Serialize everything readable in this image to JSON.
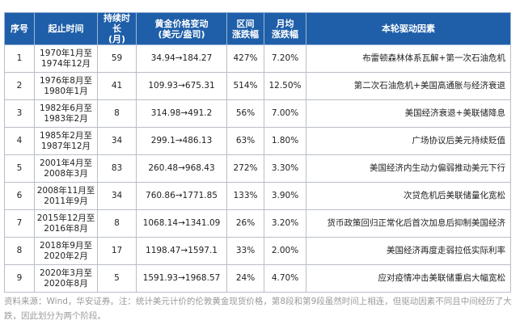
{
  "table": {
    "header": [
      "序号",
      "起止时间",
      "持续时长\n(月)",
      "黄金价格变动\n(美元/盎司)",
      "区间\n涨跌幅",
      "月均\n涨跌幅",
      "本轮驱动因素"
    ],
    "rows": [
      [
        "1",
        "1970年1月至\n1974年12月",
        "59",
        "34.94→184.27",
        "427%",
        "7.20%",
        "布雷顿森林体系瓦解+第一次石油危机"
      ],
      [
        "2",
        "1976年8月至\n1980年1月",
        "41",
        "109.93→675.31",
        "514%",
        "12.50%",
        "第二次石油危机+美国高通胀与经济衰退"
      ],
      [
        "3",
        "1982年6月至\n1983年2月",
        "8",
        "314.98→491.2",
        "56%",
        "7.00%",
        "美国经济衰退+美联储降息"
      ],
      [
        "4",
        "1985年2月至\n1987年12月",
        "34",
        "299.1→486.13",
        "63%",
        "1.80%",
        "广场协议后美元持续贬值"
      ],
      [
        "5",
        "2001年4月至\n2008年3月",
        "83",
        "260.48→968.43",
        "272%",
        "3.30%",
        "美国经济内生动力偏弱推动美元下行"
      ],
      [
        "6",
        "2008年11月至\n2011年9月",
        "34",
        "760.86→1771.85",
        "133%",
        "3.90%",
        "次贷危机后美联储量化宽松"
      ],
      [
        "7",
        "2015年12月至\n2016年8月",
        "8",
        "1068.14→1341.09",
        "26%",
        "3.20%",
        "货币政策回归正常化后首次加息后抑制美国经济"
      ],
      [
        "8",
        "2018年9月至\n2020年2月",
        "17",
        "1198.47→1597.1",
        "33%",
        "2.00%",
        "美国经济再度走弱拉低实际利率"
      ],
      [
        "9",
        "2020年3月至\n2020年8月",
        "5",
        "1591.93→1968.57",
        "24%",
        "4.70%",
        "应对疫情冲击美联储重启大幅宽松"
      ]
    ]
  },
  "note": "资料来源：Wind，华安证券。注：统计美元计价的伦敦黄金现货价格，第8段和第9段虽然时间上相连，但驱动因素不同且中间经历了大跌，因此划分为两个阶段。"
}
